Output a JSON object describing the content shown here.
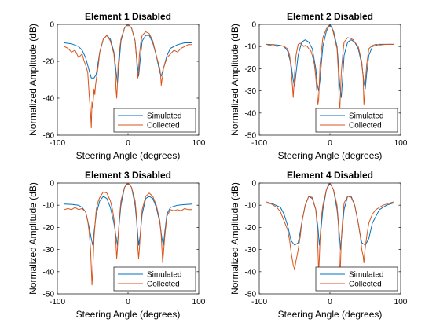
{
  "colors": {
    "simulated": "#0072BD",
    "collected": "#D95319"
  },
  "chart_data": [
    {
      "type": "line",
      "title": "Element 1 Disabled",
      "xlabel": "Steering Angle (degrees)",
      "ylabel": "Normalized Amplitude (dB)",
      "xlim": [
        -100,
        100
      ],
      "ylim": [
        -60,
        0
      ],
      "xticks": [
        -100,
        0,
        100
      ],
      "yticks": [
        -60,
        -40,
        -20,
        0
      ],
      "legend": {
        "location": "bottom-right",
        "entries": [
          "Simulated",
          "Collected"
        ]
      },
      "series": [
        {
          "name": "Simulated",
          "x": [
            -90,
            -80,
            -70,
            -65,
            -60,
            -55,
            -52,
            -48,
            -45,
            -40,
            -35,
            -30,
            -25,
            -20,
            -17,
            -15,
            -12,
            -10,
            -5,
            0,
            5,
            10,
            12,
            15,
            18,
            20,
            25,
            30,
            35,
            40,
            45,
            47,
            50,
            55,
            60,
            70,
            80,
            90
          ],
          "y": [
            -10,
            -10.5,
            -12,
            -14,
            -18,
            -25,
            -29,
            -29,
            -27,
            -15,
            -8,
            -6,
            -8,
            -15,
            -25,
            -32,
            -18,
            -9,
            -2,
            0,
            -2,
            -9,
            -18,
            -28,
            -16,
            -9,
            -6,
            -6,
            -10,
            -17,
            -26,
            -28,
            -24,
            -17,
            -13,
            -11,
            -10,
            -10
          ]
        },
        {
          "name": "Collected",
          "x": [
            -90,
            -85,
            -80,
            -75,
            -70,
            -65,
            -62,
            -60,
            -57,
            -55,
            -53,
            -52,
            -51,
            -50,
            -49,
            -48,
            -47,
            -46,
            -45,
            -42,
            -40,
            -35,
            -30,
            -25,
            -20,
            -18,
            -17,
            -16,
            -15,
            -14,
            -12,
            -10,
            -5,
            -2,
            0,
            5,
            10,
            12,
            13,
            14,
            15,
            16,
            18,
            20,
            25,
            30,
            35,
            40,
            45,
            46,
            47,
            48,
            49,
            50,
            55,
            60,
            65,
            70,
            75,
            80,
            85,
            90
          ],
          "y": [
            -12,
            -13,
            -15,
            -14,
            -18,
            -16,
            -20,
            -22,
            -26,
            -38,
            -48,
            -56,
            -42,
            -45,
            -40,
            -35,
            -38,
            -33,
            -30,
            -22,
            -15,
            -8,
            -6,
            -9,
            -16,
            -25,
            -35,
            -40,
            -32,
            -22,
            -14,
            -8,
            -2,
            -0.5,
            0,
            -2,
            -9,
            -18,
            -25,
            -29,
            -24,
            -17,
            -10,
            -6,
            -4,
            -5,
            -9,
            -17,
            -24,
            -27,
            -33,
            -30,
            -28,
            -24,
            -18,
            -16,
            -14,
            -15,
            -13,
            -12,
            -11,
            -11
          ]
        }
      ]
    },
    {
      "type": "line",
      "title": "Element 2 Disabled",
      "xlabel": "Steering Angle (degrees)",
      "ylabel": "Normalized Amplitude (dB)",
      "xlim": [
        -100,
        100
      ],
      "ylim": [
        -50,
        0
      ],
      "xticks": [
        -100,
        0,
        100
      ],
      "yticks": [
        -50,
        -40,
        -30,
        -20,
        -10,
        0
      ],
      "legend": {
        "location": "bottom-right",
        "entries": [
          "Simulated",
          "Collected"
        ]
      },
      "series": [
        {
          "name": "Simulated",
          "x": [
            -90,
            -80,
            -70,
            -65,
            -60,
            -55,
            -52,
            -50,
            -48,
            -45,
            -40,
            -35,
            -30,
            -25,
            -20,
            -18,
            -16,
            -14,
            -12,
            -10,
            -5,
            0,
            5,
            10,
            12,
            14,
            16,
            18,
            20,
            25,
            30,
            35,
            40,
            45,
            48,
            50,
            52,
            55,
            60,
            70,
            80,
            90
          ],
          "y": [
            -9,
            -9.2,
            -9.5,
            -10,
            -12,
            -18,
            -25,
            -28,
            -22,
            -14,
            -8,
            -7,
            -8,
            -11,
            -20,
            -27,
            -30,
            -25,
            -17,
            -10,
            -3,
            0,
            -3,
            -10,
            -18,
            -28,
            -33,
            -24,
            -14,
            -8,
            -7,
            -8,
            -11,
            -18,
            -26,
            -29,
            -22,
            -14,
            -10,
            -9,
            -9,
            -9
          ]
        },
        {
          "name": "Collected",
          "x": [
            -90,
            -85,
            -80,
            -75,
            -70,
            -65,
            -60,
            -57,
            -55,
            -53,
            -52,
            -51,
            -50,
            -48,
            -45,
            -42,
            -40,
            -37,
            -35,
            -32,
            -30,
            -27,
            -25,
            -22,
            -20,
            -18,
            -17,
            -16,
            -15,
            -14,
            -12,
            -10,
            -5,
            -2,
            0,
            3,
            5,
            10,
            12,
            13,
            14,
            15,
            16,
            18,
            20,
            25,
            30,
            33,
            35,
            40,
            45,
            47,
            48,
            49,
            50,
            52,
            55,
            60,
            65,
            70,
            80,
            90
          ],
          "y": [
            -9,
            -9.5,
            -9,
            -10,
            -9.5,
            -10,
            -11,
            -14,
            -20,
            -28,
            -33,
            -28,
            -22,
            -14,
            -9,
            -8.5,
            -9,
            -10,
            -9.5,
            -10,
            -11,
            -12,
            -14,
            -18,
            -24,
            -32,
            -36,
            -34,
            -26,
            -18,
            -12,
            -6,
            -2,
            -0.5,
            -1,
            -1.5,
            -4,
            -11,
            -22,
            -35,
            -38,
            -30,
            -22,
            -14,
            -8,
            -6,
            -6.5,
            -7,
            -8,
            -10,
            -17,
            -24,
            -36,
            -33,
            -26,
            -18,
            -11,
            -9.5,
            -9,
            -9.3,
            -9,
            -9
          ]
        }
      ]
    },
    {
      "type": "line",
      "title": "Element 3 Disabled",
      "xlabel": "Steering Angle (degrees)",
      "ylabel": "Normalized Amplitude (dB)",
      "xlim": [
        -100,
        100
      ],
      "ylim": [
        -50,
        0
      ],
      "xticks": [
        -100,
        0,
        100
      ],
      "yticks": [
        -50,
        -40,
        -30,
        -20,
        -10,
        0
      ],
      "legend": {
        "location": "bottom-right",
        "entries": [
          "Simulated",
          "Collected"
        ]
      },
      "series": [
        {
          "name": "Simulated",
          "x": [
            -90,
            -80,
            -70,
            -65,
            -60,
            -55,
            -52,
            -50,
            -48,
            -45,
            -40,
            -35,
            -30,
            -25,
            -20,
            -17,
            -15,
            -13,
            -10,
            -5,
            0,
            5,
            10,
            13,
            15,
            17,
            20,
            25,
            30,
            35,
            40,
            45,
            48,
            50,
            52,
            55,
            60,
            70,
            80,
            90
          ],
          "y": [
            -9.5,
            -9.6,
            -10,
            -11,
            -13,
            -20,
            -25,
            -28,
            -22,
            -14,
            -8,
            -6,
            -7,
            -11,
            -18,
            -24,
            -28,
            -20,
            -10,
            -2,
            0,
            -2,
            -10,
            -20,
            -28,
            -24,
            -14,
            -7,
            -6,
            -7,
            -11,
            -18,
            -25,
            -28,
            -22,
            -14,
            -11,
            -10,
            -9.7,
            -9.5
          ]
        },
        {
          "name": "Collected",
          "x": [
            -90,
            -85,
            -80,
            -75,
            -70,
            -65,
            -60,
            -57,
            -55,
            -53,
            -52,
            -51,
            -50,
            -49,
            -48,
            -46,
            -45,
            -42,
            -40,
            -35,
            -30,
            -25,
            -22,
            -20,
            -18,
            -17,
            -16,
            -15,
            -14,
            -12,
            -10,
            -5,
            -2,
            0,
            5,
            10,
            12,
            13,
            14,
            15,
            16,
            18,
            20,
            25,
            30,
            35,
            40,
            45,
            47,
            48,
            49,
            50,
            52,
            55,
            60,
            65,
            70,
            75,
            80,
            85,
            90
          ],
          "y": [
            -12,
            -11.5,
            -12,
            -11,
            -12,
            -11.5,
            -13,
            -17,
            -22,
            -30,
            -38,
            -46,
            -40,
            -32,
            -24,
            -16,
            -12,
            -8,
            -6.5,
            -4,
            -4.5,
            -8,
            -12,
            -16,
            -22,
            -28,
            -34,
            -30,
            -24,
            -15,
            -8,
            -2,
            -0.5,
            0,
            -2,
            -8,
            -15,
            -22,
            -30,
            -34,
            -30,
            -20,
            -12,
            -6,
            -4.5,
            -6,
            -10,
            -17,
            -24,
            -30,
            -36,
            -32,
            -24,
            -15,
            -12,
            -12.5,
            -12,
            -12.5,
            -11.5,
            -12,
            -12
          ]
        }
      ]
    },
    {
      "type": "line",
      "title": "Element 4 Disabled",
      "xlabel": "Steering Angle (degrees)",
      "ylabel": "Normalized Amplitude (dB)",
      "xlim": [
        -100,
        100
      ],
      "ylim": [
        -50,
        0
      ],
      "xticks": [
        -100,
        0,
        100
      ],
      "yticks": [
        -50,
        -40,
        -30,
        -20,
        -10,
        0
      ],
      "legend": {
        "location": "bottom-right",
        "entries": [
          "Simulated",
          "Collected"
        ]
      },
      "series": [
        {
          "name": "Simulated",
          "x": [
            -90,
            -80,
            -70,
            -65,
            -60,
            -55,
            -50,
            -45,
            -42,
            -40,
            -35,
            -30,
            -25,
            -20,
            -17,
            -15,
            -13,
            -10,
            -5,
            0,
            5,
            10,
            13,
            15,
            17,
            20,
            25,
            30,
            35,
            40,
            42,
            45,
            50,
            55,
            60,
            70,
            80,
            90
          ],
          "y": [
            -9,
            -9.5,
            -11,
            -14,
            -19,
            -26,
            -28,
            -27,
            -22,
            -18,
            -10,
            -6,
            -7,
            -12,
            -20,
            -28,
            -22,
            -12,
            -3,
            0,
            -3,
            -12,
            -22,
            -30,
            -22,
            -12,
            -6,
            -6,
            -10,
            -18,
            -22,
            -27,
            -28,
            -25,
            -18,
            -12,
            -10,
            -9
          ]
        },
        {
          "name": "Collected",
          "x": [
            -90,
            -85,
            -80,
            -75,
            -70,
            -65,
            -60,
            -57,
            -55,
            -52,
            -50,
            -48,
            -46,
            -45,
            -42,
            -40,
            -35,
            -30,
            -25,
            -20,
            -18,
            -17,
            -16,
            -15,
            -14,
            -12,
            -10,
            -5,
            -2,
            0,
            5,
            10,
            12,
            13,
            14,
            15,
            16,
            18,
            20,
            25,
            30,
            35,
            40,
            43,
            45,
            47,
            48,
            49,
            50,
            52,
            55,
            60,
            65,
            70,
            75,
            80,
            85,
            90
          ],
          "y": [
            -8.5,
            -9,
            -10,
            -11,
            -13,
            -17,
            -21,
            -26,
            -31,
            -37,
            -39,
            -35,
            -32,
            -30,
            -24,
            -18,
            -10,
            -6,
            -6.5,
            -12,
            -20,
            -30,
            -40,
            -34,
            -25,
            -15,
            -10,
            -3,
            -0.5,
            0,
            -3,
            -10,
            -18,
            -30,
            -42,
            -36,
            -26,
            -16,
            -9,
            -6,
            -6.5,
            -10,
            -18,
            -24,
            -30,
            -33,
            -36,
            -32,
            -29,
            -24,
            -18,
            -14,
            -12,
            -11,
            -10,
            -9.5,
            -9,
            -8.5
          ]
        }
      ]
    }
  ]
}
